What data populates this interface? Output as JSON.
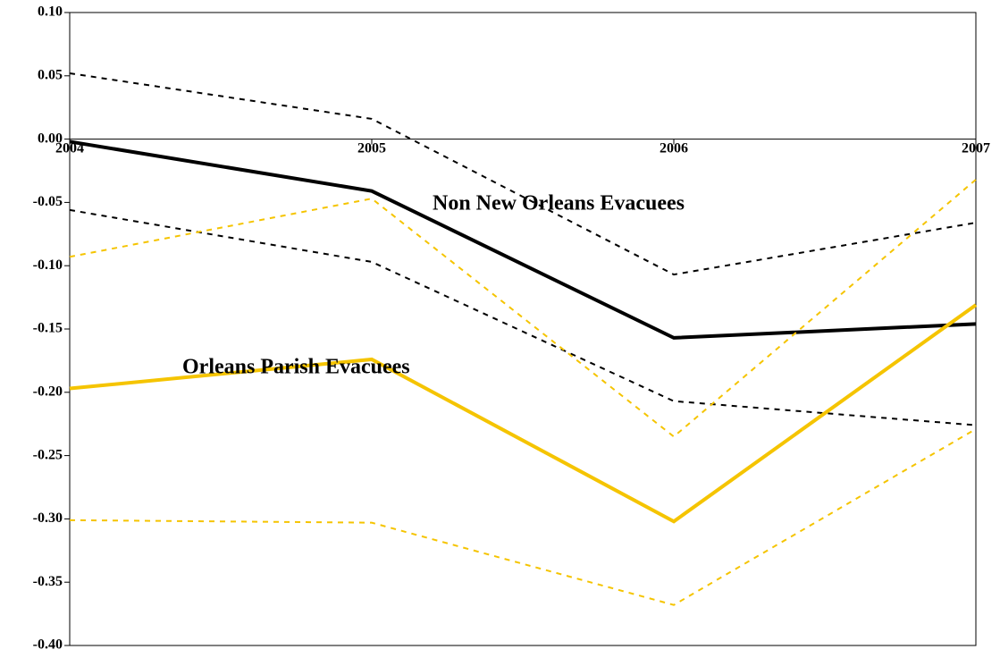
{
  "chart_data": {
    "type": "line",
    "x": [
      2004,
      2005,
      2006,
      2007
    ],
    "xlim": [
      2004,
      2007
    ],
    "xticks": [
      2004,
      2005,
      2006,
      2007
    ],
    "ylim": [
      -0.4,
      0.1
    ],
    "yticks": [
      {
        "value": 0.1,
        "label": "0.10"
      },
      {
        "value": 0.05,
        "label": "0.05"
      },
      {
        "value": 0,
        "label": "0.00"
      },
      {
        "value": -0.05,
        "label": "-0.05"
      },
      {
        "value": -0.1,
        "label": "-0.10"
      },
      {
        "value": -0.15,
        "label": "-0.15"
      },
      {
        "value": -0.2,
        "label": "-0.20"
      },
      {
        "value": -0.25,
        "label": "-0.25"
      },
      {
        "value": -0.3,
        "label": "-0.30"
      },
      {
        "value": -0.35,
        "label": "-0.35"
      },
      {
        "value": -0.4,
        "label": "-0.40"
      }
    ],
    "series": [
      {
        "color": "#000000",
        "dashed": false,
        "values": [
          -0.002,
          -0.041,
          -0.157,
          -0.146
        ]
      },
      {
        "color": "#000000",
        "dashed": true,
        "values": [
          0.052,
          0.016,
          -0.107,
          -0.066
        ]
      },
      {
        "color": "#000000",
        "dashed": true,
        "values": [
          -0.056,
          -0.097,
          -0.207,
          -0.226
        ]
      },
      {
        "color": "#f5c400",
        "dashed": false,
        "values": [
          -0.197,
          -0.174,
          -0.302,
          -0.131
        ]
      },
      {
        "color": "#f5c400",
        "dashed": true,
        "values": [
          -0.093,
          -0.047,
          -0.235,
          -0.032
        ]
      },
      {
        "color": "#f5c400",
        "dashed": true,
        "values": [
          -0.301,
          -0.303,
          -0.368,
          -0.229
        ]
      }
    ],
    "annotations": [
      "Non New Orleans Evacuees",
      "Orleans Parish Evacuees"
    ]
  }
}
